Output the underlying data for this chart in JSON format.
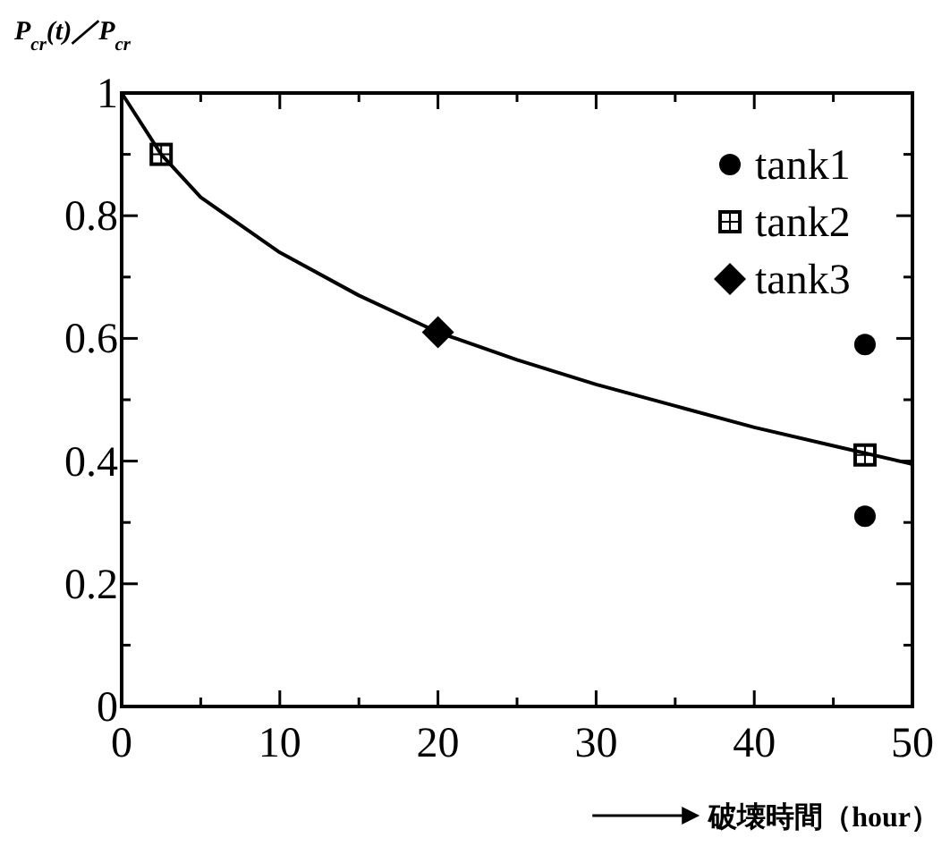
{
  "chart_data": {
    "type": "scatter",
    "ylabel": "P$_{cr}$(t)／P$_{cr}$",
    "xlabel": "破壊時間（hour）",
    "xlim": [
      0,
      50
    ],
    "ylim": [
      0,
      1
    ],
    "xticks": [
      0,
      {
        "value": 5,
        "label": null
      },
      10,
      {
        "value": 15,
        "label": null
      },
      20,
      {
        "value": 25,
        "label": null
      },
      30,
      {
        "value": 35,
        "label": null
      },
      40,
      {
        "value": 45,
        "label": null
      },
      50
    ],
    "yticks": [
      0,
      {
        "value": 0.1,
        "label": null
      },
      0.2,
      {
        "value": 0.3,
        "label": null
      },
      0.4,
      {
        "value": 0.5,
        "label": null
      },
      0.6,
      {
        "value": 0.7,
        "label": null
      },
      0.8,
      {
        "value": 0.9,
        "label": null
      },
      1
    ],
    "legend": "top right",
    "series": [
      {
        "name": "tank1",
        "marker": "circle",
        "color": "#000000",
        "x": [
          47,
          47
        ],
        "values": [
          0.59,
          0.31
        ]
      },
      {
        "name": "tank2",
        "marker": "square",
        "color": "#000000",
        "x": [
          2.5,
          47
        ],
        "values": [
          0.9,
          0.41
        ]
      },
      {
        "name": "tank3",
        "marker": "diamond",
        "color": "#000000",
        "x": [
          20
        ],
        "values": [
          0.61
        ]
      },
      {
        "type": "line",
        "marker": "none",
        "line_style": "solid",
        "color": "#000000",
        "x": [
          0,
          2.5,
          5,
          10,
          15,
          20,
          25,
          30,
          35,
          40,
          45,
          50
        ],
        "values": [
          1,
          0.9,
          0.83,
          0.74,
          0.67,
          0.61,
          0.565,
          0.525,
          0.49,
          0.455,
          0.425,
          0.395
        ]
      }
    ]
  }
}
